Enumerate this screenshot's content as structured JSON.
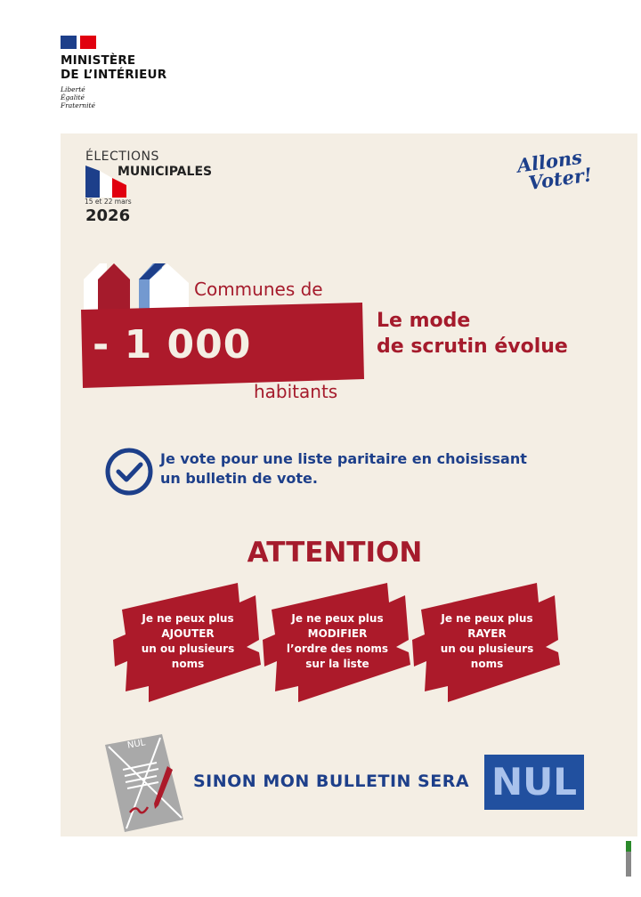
{
  "header": {
    "ministry_line1": "MINISTÈRE",
    "ministry_line2": "DE L’INTÉRIEUR",
    "motto": [
      "Liberté",
      "Égalité",
      "Fraternité"
    ]
  },
  "election": {
    "line1": "ÉLECTIONS",
    "line2": "MUNICIPALES",
    "dates": "15 et 22 mars",
    "year": "2026"
  },
  "slogan": [
    "Allons",
    "Voter!"
  ],
  "communes": {
    "prefix": "Communes de",
    "number": "- 1 000",
    "suffix": "habitants"
  },
  "headline": [
    "Le mode",
    "de scrutin évolue"
  ],
  "vote_statement": [
    "Je vote pour une liste paritaire en choisissant",
    "un bulletin de vote."
  ],
  "attention": "ATTENTION",
  "banners": [
    {
      "lines": [
        "Je ne peux plus",
        "AJOUTER",
        "un ou plusieurs",
        "noms"
      ]
    },
    {
      "lines": [
        "Je ne peux plus",
        "MODIFIER",
        "l’ordre des noms",
        "sur la liste"
      ]
    },
    {
      "lines": [
        "Je ne peux plus",
        "RAYER",
        "un ou plusieurs",
        "noms"
      ]
    }
  ],
  "ballot_label": "NUL",
  "footer": {
    "text": "SINON MON BULLETIN SERA",
    "nul": "NUL"
  },
  "colors": {
    "red": "#a51b2c",
    "blue": "#1d3f8a",
    "beige": "#f4eee4",
    "nul_box": "#21509f"
  }
}
